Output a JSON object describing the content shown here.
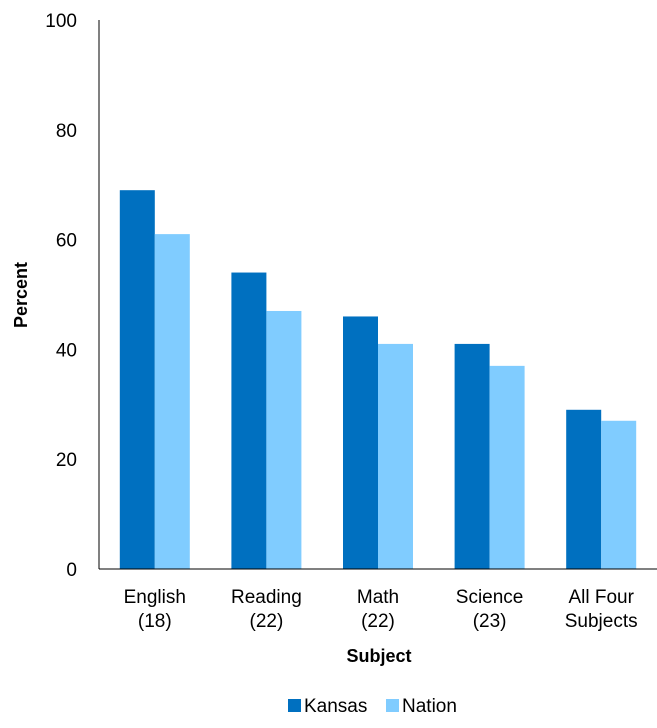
{
  "chart_data": {
    "type": "bar",
    "title": "",
    "xlabel": "Subject",
    "ylabel": "Percent",
    "ylim": [
      0,
      100
    ],
    "yticks": [
      0,
      20,
      40,
      60,
      80,
      100
    ],
    "grid": false,
    "legend_position": "bottom",
    "categories": [
      [
        "English",
        "(18)"
      ],
      [
        "Reading",
        "(22)"
      ],
      [
        "Math",
        "(22)"
      ],
      [
        "Science",
        "(23)"
      ],
      [
        "All Four",
        "Subjects"
      ]
    ],
    "series": [
      {
        "name": "Kansas",
        "color": "#0070C0",
        "values": [
          69,
          54,
          46,
          41,
          29
        ]
      },
      {
        "name": "Nation",
        "color": "#80CCFF",
        "values": [
          61,
          47,
          41,
          37,
          27
        ]
      }
    ]
  }
}
